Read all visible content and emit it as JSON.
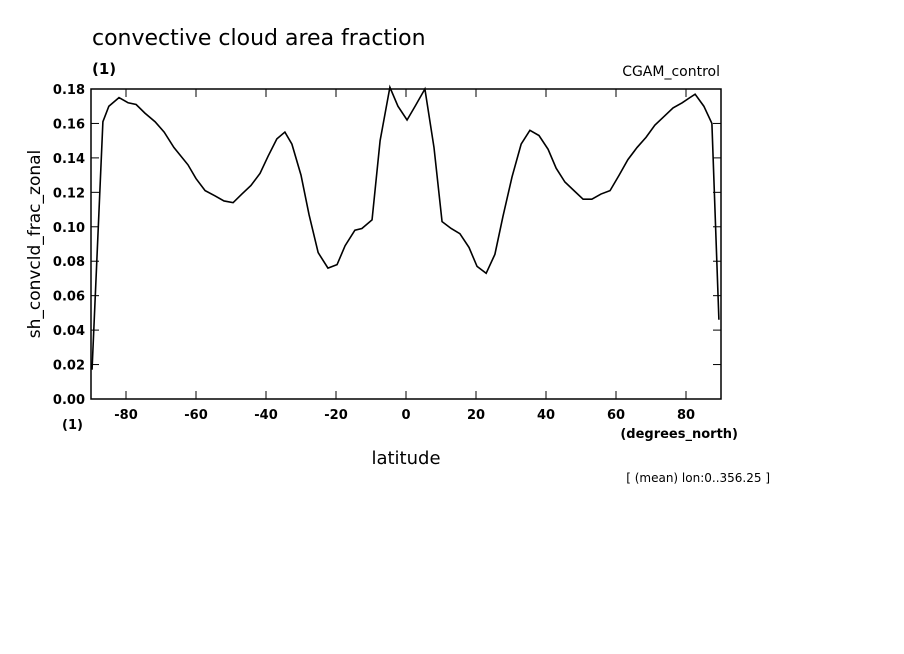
{
  "chart_data": {
    "type": "line",
    "title": "convective cloud area fraction",
    "subtitle": "(1)",
    "dataset_label": "CGAM_control",
    "y_label": "sh_convcld_frac_zonal",
    "y_units": "(1)",
    "x_label": "latitude",
    "x_units": "(degrees_north)",
    "footnote": "[ (mean) lon:0..356.25 ]",
    "x": [
      -89.7,
      -86.6,
      -84.9,
      -82.0,
      -79.4,
      -77.1,
      -74.6,
      -71.7,
      -69.1,
      -66.3,
      -62.3,
      -60.0,
      -57.4,
      -54.6,
      -52.0,
      -49.4,
      -46.9,
      -44.3,
      -41.7,
      -39.4,
      -36.9,
      -34.6,
      -32.6,
      -30.0,
      -27.7,
      -25.1,
      -22.3,
      -19.7,
      -17.4,
      -14.6,
      -12.6,
      -9.7,
      -7.4,
      -4.6,
      -2.3,
      0.3,
      2.6,
      5.4,
      8.0,
      10.3,
      12.9,
      15.4,
      18.0,
      20.3,
      22.9,
      25.4,
      27.7,
      30.3,
      32.9,
      35.4,
      38.0,
      40.6,
      42.9,
      45.4,
      48.0,
      50.6,
      53.1,
      55.7,
      58.3,
      60.9,
      63.4,
      66.0,
      68.6,
      71.1,
      73.7,
      76.3,
      78.9,
      81.1,
      82.6,
      85.1,
      87.4,
      89.4
    ],
    "series": [
      {
        "color": "#000000",
        "values": [
          0.017,
          0.161,
          0.17,
          0.175,
          0.172,
          0.171,
          0.166,
          0.161,
          0.155,
          0.146,
          0.136,
          0.128,
          0.121,
          0.118,
          0.115,
          0.114,
          0.119,
          0.124,
          0.131,
          0.141,
          0.151,
          0.155,
          0.148,
          0.13,
          0.107,
          0.085,
          0.076,
          0.078,
          0.089,
          0.098,
          0.099,
          0.104,
          0.15,
          0.181,
          0.17,
          0.162,
          0.17,
          0.18,
          0.146,
          0.103,
          0.099,
          0.096,
          0.088,
          0.077,
          0.073,
          0.084,
          0.106,
          0.129,
          0.148,
          0.156,
          0.153,
          0.145,
          0.134,
          0.126,
          0.121,
          0.116,
          0.116,
          0.119,
          0.121,
          0.13,
          0.139,
          0.146,
          0.152,
          0.159,
          0.164,
          0.169,
          0.172,
          0.175,
          0.177,
          0.17,
          0.16,
          0.046
        ]
      }
    ],
    "xlim": [
      -90,
      90
    ],
    "xticks": [
      -80,
      -60,
      -40,
      -20,
      0,
      20,
      40,
      60,
      80
    ],
    "ylim": [
      0,
      0.18
    ],
    "yticks": [
      {
        "value": 0,
        "label": "0.00"
      },
      0.02,
      0.04,
      0.06,
      0.08,
      {
        "value": 0.1,
        "label": "0.10"
      },
      0.12,
      0.14,
      0.16,
      0.18
    ]
  }
}
